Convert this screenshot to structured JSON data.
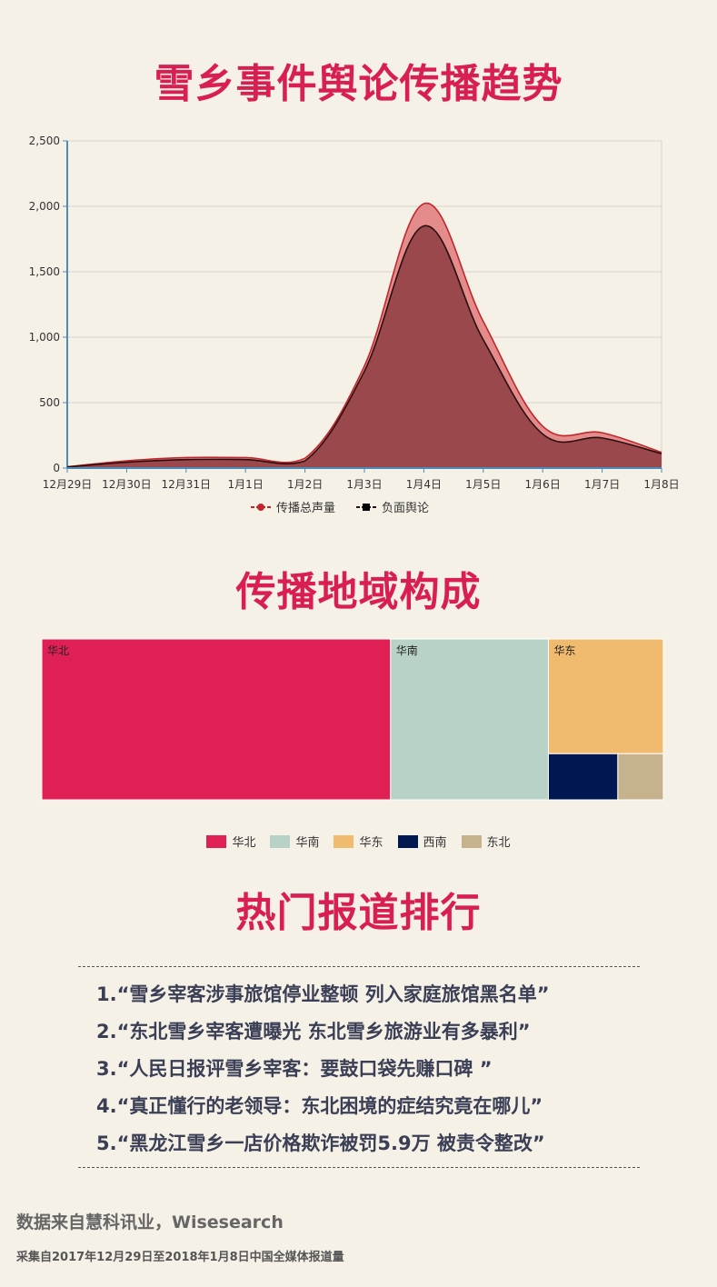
{
  "titles": {
    "trend": "雪乡事件舆论传播趋势",
    "region": "传播地域构成",
    "ranking": "热门报道排行"
  },
  "chart_data": [
    {
      "type": "area",
      "categories": [
        "12月29日",
        "12月30日",
        "12月31日",
        "1月1日",
        "1月2日",
        "1月3日",
        "1月4日",
        "1月5日",
        "1月6日",
        "1月7日",
        "1月8日"
      ],
      "ylim": [
        0,
        2500
      ],
      "yticks": [
        "0",
        "500",
        "1,000",
        "1,500",
        "2,000",
        "2,500"
      ],
      "ytick_values": [
        0,
        500,
        1000,
        1500,
        2000,
        2500
      ],
      "grid": true,
      "legend_position": "bottom",
      "series": [
        {
          "name": "传播总声量",
          "values": [
            10,
            55,
            80,
            80,
            75,
            780,
            2020,
            1120,
            320,
            270,
            120
          ],
          "color": "#c0272d",
          "fill": "#e07a7a",
          "marker": "circle"
        },
        {
          "name": "负面舆论",
          "values": [
            8,
            45,
            65,
            65,
            55,
            740,
            1850,
            980,
            260,
            230,
            110
          ],
          "color": "#2a0f10",
          "fill": "#8d3c3f",
          "marker": "square"
        }
      ]
    },
    {
      "type": "treemap",
      "categories": [
        "华北",
        "华南",
        "华东",
        "西南",
        "东北"
      ],
      "values": [
        56.1,
        25.4,
        13.2,
        3.2,
        2.1
      ],
      "colors": [
        "#e01f54",
        "#b8d2c7",
        "#f0bb6e",
        "#001852",
        "#c6b38e"
      ],
      "legend_position": "bottom"
    }
  ],
  "ranking": [
    "1.“雪乡宰客涉事旅馆停业整顿 列入家庭旅馆黑名单”",
    "2.“东北雪乡宰客遭曝光 东北雪乡旅游业有多暴利”",
    "3.“人民日报评雪乡宰客：要鼓口袋先赚口碑 ”",
    "4.“真正懂行的老领导：东北困境的症结究竟在哪儿”",
    "5.“黑龙江雪乡一店价格欺诈被罚5.9万 被责令整改”"
  ],
  "source": {
    "line1": "数据来自慧科讯业，Wisesearch",
    "line2": "采集自2017年12月29日至2018年1月8日中国全媒体报道量"
  }
}
